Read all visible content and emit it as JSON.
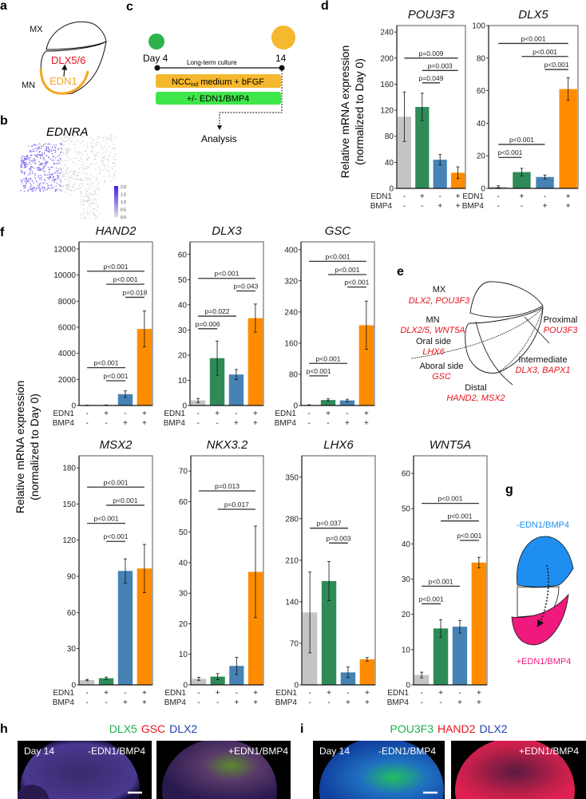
{
  "panel_labels": {
    "a": "a",
    "b": "b",
    "c": "c",
    "d": "d",
    "e": "e",
    "f": "f",
    "g": "g",
    "h": "h",
    "i": "i"
  },
  "panel_a": {
    "mx": "MX",
    "mn": "MN",
    "dlx": "DLX5/6",
    "edn1": "EDN1"
  },
  "panel_b": {
    "title": "EDNRA",
    "colorbar_ticks": [
      "2.0",
      "1.5",
      "1.0",
      "0.5",
      "0.0"
    ]
  },
  "panel_c": {
    "day_start": "Day 4",
    "day_end": "14",
    "culture": "Long-term culture",
    "medium_prefix": "NCC",
    "medium_sub": "ind",
    "medium_suffix": " medium + bFGF",
    "treatment": "+/- EDN1/BMP4",
    "analysis": "Analysis"
  },
  "y_axis_label": {
    "line1": "Relative mRNA expression",
    "line2": "(normalized to Day 0)"
  },
  "panel_e": {
    "mx": "MX",
    "mx_genes": "DLX2, POU3F3",
    "mn": "MN",
    "mn_genes": "DLX2/5, WNT5A",
    "oral": "Oral side",
    "oral_genes": "LHX6",
    "aboral": "Aboral side",
    "aboral_genes": "GSC",
    "proximal": "Proximal",
    "proximal_genes": "POU3F3",
    "intermediate": "Intermediate",
    "intermediate_genes": "DLX3, BAPX1",
    "distal": "Distal",
    "distal_genes": "HAND2, MSX2"
  },
  "panel_g": {
    "minus": "-EDN1/BMP4",
    "plus": "+EDN1/BMP4"
  },
  "panel_h": {
    "stain1": "DLX5",
    "stain2": "GSC",
    "stain3": "DLX2",
    "day": "Day 14",
    "cond_minus": "-EDN1/BMP4",
    "cond_plus": "+EDN1/BMP4"
  },
  "panel_i": {
    "stain1": "POU3F3",
    "stain2": "HAND2",
    "stain3": "DLX2",
    "day": "Day 14",
    "cond_minus": "-EDN1/BMP4",
    "cond_plus": "+EDN1/BMP4"
  },
  "colors": {
    "control": "#c4c4c4",
    "edn1": "#2e8b57",
    "bmp4": "#4682b4",
    "both": "#ff8c00",
    "stain_green": "#1db34a",
    "stain_red": "#e8141e",
    "stain_blue": "#1f3fb0",
    "g_blue": "#1e8ff0",
    "g_pink": "#f0197d"
  },
  "chart_data": [
    {
      "type": "bar",
      "title": "POU3F3",
      "ylabel": "Relative mRNA expression (normalized to Day 0)",
      "ylim": [
        0,
        250
      ],
      "ticks": [
        0,
        40,
        80,
        120,
        160,
        200,
        240
      ],
      "row_labels": [
        "EDN1",
        "BMP4"
      ],
      "edn1": [
        "-",
        "+",
        "-",
        "+"
      ],
      "bmp4": [
        "-",
        "-",
        "+",
        "+"
      ],
      "values": [
        110,
        125,
        44,
        24
      ],
      "errors": [
        38,
        21,
        8,
        9
      ],
      "brackets": [
        {
          "from": 0,
          "to": 3,
          "y": 200,
          "label": "p=0.009"
        },
        {
          "from": 1,
          "to": 3,
          "y": 181,
          "label": "p=0.003"
        },
        {
          "from": 1,
          "to": 2,
          "y": 162,
          "label": "p=0.049"
        }
      ]
    },
    {
      "type": "bar",
      "title": "DLX5",
      "ylim": [
        0,
        100
      ],
      "ticks": [
        0,
        20,
        40,
        60,
        80,
        100
      ],
      "row_labels": [
        "EDN1",
        "BMP4"
      ],
      "edn1": [
        "-",
        "+",
        "-",
        "+"
      ],
      "bmp4": [
        "-",
        "-",
        "+",
        "+"
      ],
      "values": [
        1,
        10,
        7,
        61
      ],
      "errors": [
        0.6,
        2.3,
        1.2,
        7
      ],
      "brackets": [
        {
          "from": 0,
          "to": 3,
          "y": 89,
          "label": "p<0.001"
        },
        {
          "from": 1,
          "to": 3,
          "y": 81,
          "label": "p<0.001"
        },
        {
          "from": 2,
          "to": 3,
          "y": 73,
          "label": "p<0.001"
        },
        {
          "from": 0,
          "to": 2,
          "y": 27,
          "label": "p<0.001"
        },
        {
          "from": 0,
          "to": 1,
          "y": 19,
          "label": "p<0.001"
        }
      ]
    },
    {
      "type": "bar",
      "title": "HAND2",
      "ylim": [
        0,
        12550
      ],
      "ticks": [
        0,
        2000,
        4000,
        6000,
        8000,
        10000,
        12000
      ],
      "row_labels": [
        "EDN1",
        "BMP4"
      ],
      "edn1": [
        "-",
        "+",
        "-",
        "+"
      ],
      "bmp4": [
        "-",
        "-",
        "+",
        "+"
      ],
      "values": [
        20,
        30,
        870,
        5870
      ],
      "errors": [
        10,
        10,
        250,
        1380
      ],
      "brackets": [
        {
          "from": 0,
          "to": 3,
          "y": 10300,
          "label": "p<0.001"
        },
        {
          "from": 1,
          "to": 3,
          "y": 9300,
          "label": "p<0.001"
        },
        {
          "from": 2,
          "to": 3,
          "y": 8300,
          "label": "p=0.018"
        },
        {
          "from": 0,
          "to": 2,
          "y": 2900,
          "label": "p<0.001"
        },
        {
          "from": 1,
          "to": 2,
          "y": 1900,
          "label": "p<0.001"
        }
      ]
    },
    {
      "type": "bar",
      "title": "DLX3",
      "ylim": [
        0,
        65
      ],
      "ticks": [
        0,
        10,
        20,
        30,
        40,
        50,
        60
      ],
      "row_labels": [
        "EDN1",
        "BMP4"
      ],
      "edn1": [
        "-",
        "+",
        "-",
        "+"
      ],
      "bmp4": [
        "-",
        "-",
        "+",
        "+"
      ],
      "values": [
        2,
        18.8,
        12.3,
        34.7
      ],
      "errors": [
        0.8,
        6.8,
        2,
        5.6
      ],
      "brackets": [
        {
          "from": 0,
          "to": 3,
          "y": 50.5,
          "label": "p<0.001"
        },
        {
          "from": 2,
          "to": 3,
          "y": 45.5,
          "label": "p=0.043"
        },
        {
          "from": 0,
          "to": 2,
          "y": 35.5,
          "label": "p=0.022"
        },
        {
          "from": 0,
          "to": 1,
          "y": 30.5,
          "label": "p=0.006"
        }
      ]
    },
    {
      "type": "bar",
      "title": "GSC",
      "ylim": [
        0,
        420
      ],
      "ticks": [
        0,
        80,
        160,
        240,
        320,
        400
      ],
      "row_labels": [
        "EDN1",
        "BMP4"
      ],
      "edn1": [
        "-",
        "+",
        "-",
        "+"
      ],
      "bmp4": [
        "-",
        "-",
        "+",
        "+"
      ],
      "values": [
        1,
        14,
        13,
        206
      ],
      "errors": [
        1,
        3,
        3,
        62
      ],
      "brackets": [
        {
          "from": 0,
          "to": 3,
          "y": 370,
          "label": "p<0.001"
        },
        {
          "from": 1,
          "to": 3,
          "y": 336,
          "label": "p<0.001"
        },
        {
          "from": 2,
          "to": 3,
          "y": 304,
          "label": "p<0.001"
        },
        {
          "from": 0,
          "to": 2,
          "y": 108,
          "label": "p<0.001"
        },
        {
          "from": 0,
          "to": 1,
          "y": 76,
          "label": "p<0.001"
        }
      ]
    },
    {
      "type": "bar",
      "title": "MSX2",
      "ylim": [
        0,
        190
      ],
      "ticks": [
        0,
        30,
        60,
        90,
        120,
        150,
        180
      ],
      "row_labels": [
        "EDN1",
        "BMP4"
      ],
      "edn1": [
        "-",
        "+",
        "-",
        "+"
      ],
      "bmp4": [
        "-",
        "-",
        "+",
        "+"
      ],
      "values": [
        4,
        5.5,
        94.5,
        96.5
      ],
      "errors": [
        0.6,
        1,
        10,
        20
      ],
      "brackets": [
        {
          "from": 0,
          "to": 3,
          "y": 164,
          "label": "p<0.001"
        },
        {
          "from": 1,
          "to": 3,
          "y": 149,
          "label": "p<0.001"
        },
        {
          "from": 0,
          "to": 2,
          "y": 134,
          "label": "p<0.001"
        },
        {
          "from": 1,
          "to": 2,
          "y": 119,
          "label": "p<0.001"
        }
      ]
    },
    {
      "type": "bar",
      "title": "NKX3.2",
      "ylim": [
        0,
        75
      ],
      "ticks": [
        0,
        10,
        20,
        30,
        40,
        50,
        60,
        70
      ],
      "row_labels": [
        "EDN1",
        "BMP4"
      ],
      "edn1": [
        "-",
        "+",
        "-",
        "+"
      ],
      "bmp4": [
        "-",
        "-",
        "+",
        "+"
      ],
      "values": [
        2,
        2.7,
        6.2,
        37
      ],
      "errors": [
        0.5,
        1,
        2.8,
        15
      ],
      "brackets": [
        {
          "from": 0,
          "to": 3,
          "y": 63.5,
          "label": "p=0.013"
        },
        {
          "from": 1,
          "to": 3,
          "y": 57.5,
          "label": "p=0.017"
        }
      ]
    },
    {
      "type": "bar",
      "title": "LHX6",
      "ylim": [
        0,
        386
      ],
      "ticks": [
        0,
        70,
        140,
        210,
        280,
        350
      ],
      "row_labels": [
        "EDN1",
        "BMP4"
      ],
      "edn1": [
        "-",
        "+",
        "-",
        "+"
      ],
      "bmp4": [
        "-",
        "-",
        "+",
        "+"
      ],
      "values": [
        122,
        175,
        21,
        43
      ],
      "errors": [
        68,
        33,
        9,
        3
      ],
      "brackets": [
        {
          "from": 0,
          "to": 2,
          "y": 264,
          "label": "p=0.037"
        },
        {
          "from": 1,
          "to": 2,
          "y": 239,
          "label": "p=0.003"
        }
      ]
    },
    {
      "type": "bar",
      "title": "WNT5A",
      "ylim": [
        0,
        65
      ],
      "ticks": [
        0,
        10,
        20,
        30,
        40,
        50,
        60
      ],
      "row_labels": [
        "EDN1",
        "BMP4"
      ],
      "edn1": [
        "-",
        "+",
        "-",
        "+"
      ],
      "bmp4": [
        "-",
        "-",
        "+",
        "+"
      ],
      "values": [
        2.8,
        16,
        16.5,
        34.7
      ],
      "errors": [
        0.8,
        2.5,
        1.8,
        1.5
      ],
      "brackets": [
        {
          "from": 0,
          "to": 3,
          "y": 51.5,
          "label": "p<0.001"
        },
        {
          "from": 1,
          "to": 3,
          "y": 46.5,
          "label": "p<0.001"
        },
        {
          "from": 2,
          "to": 3,
          "y": 41,
          "label": "p<0.001"
        },
        {
          "from": 0,
          "to": 2,
          "y": 28,
          "label": "p<0.001"
        },
        {
          "from": 0,
          "to": 1,
          "y": 23,
          "label": "p<0.001"
        }
      ]
    }
  ]
}
